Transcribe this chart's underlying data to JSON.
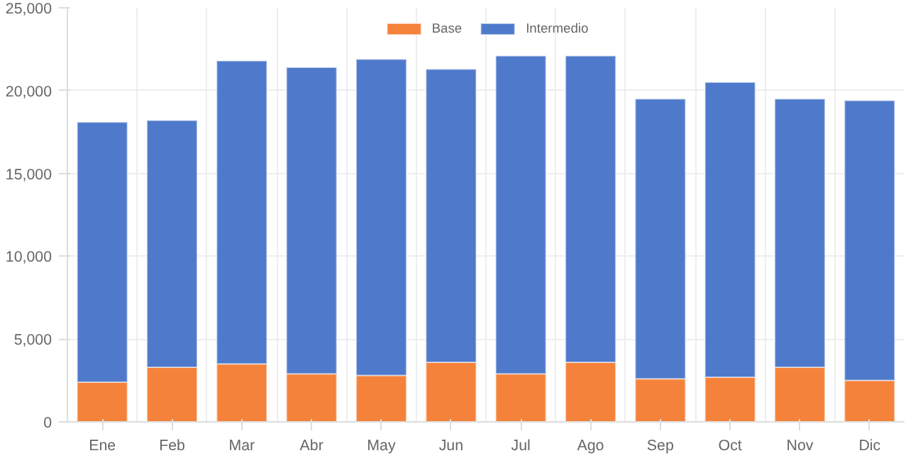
{
  "chart_data": {
    "type": "bar",
    "stacked": true,
    "categories": [
      "Ene",
      "Feb",
      "Mar",
      "Abr",
      "May",
      "Jun",
      "Jul",
      "Ago",
      "Sep",
      "Oct",
      "Nov",
      "Dic"
    ],
    "series": [
      {
        "name": "Base",
        "color": "#f5823a",
        "values": [
          2400,
          3300,
          3500,
          2900,
          2800,
          3600,
          2900,
          3600,
          2600,
          2700,
          3300,
          2500
        ]
      },
      {
        "name": "Intermedio",
        "color": "#4f7acb",
        "values": [
          15700,
          14900,
          18300,
          18500,
          19100,
          17700,
          19200,
          18500,
          16900,
          17800,
          16200,
          16900
        ]
      }
    ],
    "ylim": [
      0,
      25000
    ],
    "yticks": [
      {
        "value": 0,
        "label": "0"
      },
      {
        "value": 5000,
        "label": "5,000"
      },
      {
        "value": 10000,
        "label": "10,000"
      },
      {
        "value": 15000,
        "label": "15,000"
      },
      {
        "value": 20000,
        "label": "20,000"
      },
      {
        "value": 25000,
        "label": "25,000"
      }
    ],
    "grid": true,
    "legend": "top"
  }
}
